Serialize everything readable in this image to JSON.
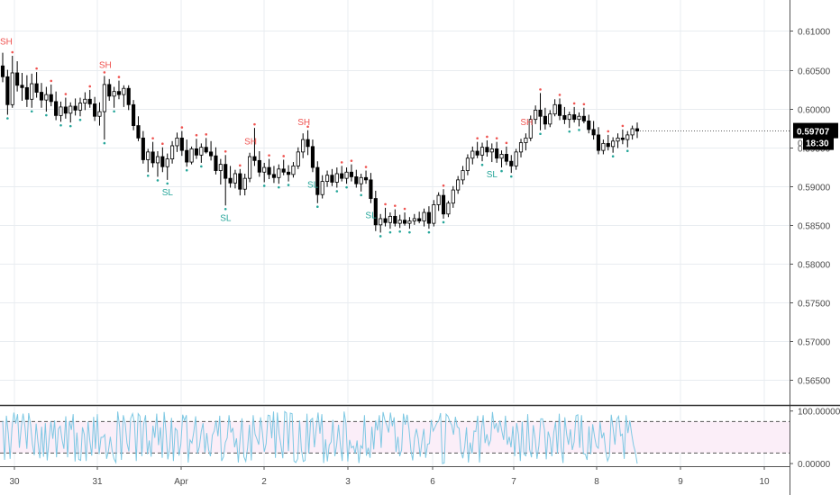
{
  "chart_data": {
    "type": "candlestick",
    "main_panel": {
      "ylim": [
        0.562,
        0.614
      ],
      "y_ticks": [
        "0.56500",
        "0.57000",
        "0.57500",
        "0.58000",
        "0.58500",
        "0.59000",
        "0.59500",
        "0.60000",
        "0.60500",
        "0.61000"
      ],
      "last_price": "0.59707",
      "countdown": "18:30",
      "hidden_tick": "0",
      "bullish_color": "#ffffff",
      "bearish_color": "#000000",
      "swing_high_color": "#ef5350",
      "swing_low_color": "#26a69a",
      "candles": [
        [
          0.6055,
          0.6072,
          0.6034,
          0.6041
        ],
        [
          0.6041,
          0.605,
          0.5992,
          0.6005
        ],
        [
          0.6005,
          0.6068,
          0.6001,
          0.6046
        ],
        [
          0.6046,
          0.6061,
          0.6022,
          0.603
        ],
        [
          0.603,
          0.6046,
          0.601,
          0.6027
        ],
        [
          0.6027,
          0.6043,
          0.6002,
          0.6012
        ],
        [
          0.6012,
          0.6045,
          0.6001,
          0.6032
        ],
        [
          0.6032,
          0.6047,
          0.6014,
          0.6021
        ],
        [
          0.6021,
          0.6033,
          0.6001,
          0.6011
        ],
        [
          0.6011,
          0.6028,
          0.5996,
          0.6018
        ],
        [
          0.6018,
          0.6031,
          0.6003,
          0.6009
        ],
        [
          0.6009,
          0.6022,
          0.5985,
          0.5991
        ],
        [
          0.5991,
          0.6009,
          0.5983,
          0.6002
        ],
        [
          0.6002,
          0.6014,
          0.5987,
          0.5994
        ],
        [
          0.5994,
          0.6008,
          0.5982,
          0.6003
        ],
        [
          0.6003,
          0.6013,
          0.5991,
          0.5998
        ],
        [
          0.5998,
          0.6014,
          0.599,
          0.6007
        ],
        [
          0.6007,
          0.6021,
          0.5998,
          0.6012
        ],
        [
          0.6012,
          0.6024,
          0.6001,
          0.6006
        ],
        [
          0.6006,
          0.6015,
          0.5984,
          0.599
        ],
        [
          0.599,
          0.6008,
          0.5978,
          0.5996
        ],
        [
          0.5996,
          0.6042,
          0.596,
          0.6031
        ],
        [
          0.6031,
          0.6038,
          0.601,
          0.6016
        ],
        [
          0.6016,
          0.6028,
          0.6001,
          0.6022
        ],
        [
          0.6022,
          0.6036,
          0.6012,
          0.6018
        ],
        [
          0.6018,
          0.603,
          0.6002,
          0.6026
        ],
        [
          0.6026,
          0.603,
          0.5998,
          0.6005
        ],
        [
          0.6005,
          0.6011,
          0.5972,
          0.5978
        ],
        [
          0.5978,
          0.599,
          0.5958,
          0.5962
        ],
        [
          0.5962,
          0.5971,
          0.5929,
          0.5934
        ],
        [
          0.5934,
          0.5948,
          0.5918,
          0.5944
        ],
        [
          0.5944,
          0.5957,
          0.5924,
          0.593
        ],
        [
          0.593,
          0.5945,
          0.5912,
          0.5938
        ],
        [
          0.5938,
          0.595,
          0.5918,
          0.5925
        ],
        [
          0.5925,
          0.5942,
          0.5908,
          0.5935
        ],
        [
          0.5935,
          0.5958,
          0.5929,
          0.5952
        ],
        [
          0.5952,
          0.5969,
          0.5944,
          0.5962
        ],
        [
          0.5962,
          0.5971,
          0.5939,
          0.5946
        ],
        [
          0.5946,
          0.596,
          0.5925,
          0.5931
        ],
        [
          0.5931,
          0.5951,
          0.5928,
          0.5948
        ],
        [
          0.5948,
          0.5961,
          0.5935,
          0.594
        ],
        [
          0.594,
          0.5955,
          0.593,
          0.595
        ],
        [
          0.595,
          0.5962,
          0.5942,
          0.5944
        ],
        [
          0.5944,
          0.5958,
          0.5933,
          0.5939
        ],
        [
          0.5939,
          0.595,
          0.5915,
          0.592
        ],
        [
          0.592,
          0.5935,
          0.5902,
          0.5928
        ],
        [
          0.5928,
          0.594,
          0.5875,
          0.591
        ],
        [
          0.591,
          0.5926,
          0.5898,
          0.5904
        ],
        [
          0.5904,
          0.5921,
          0.5897,
          0.5916
        ],
        [
          0.5916,
          0.5922,
          0.5888,
          0.5896
        ],
        [
          0.5896,
          0.5916,
          0.5888,
          0.591
        ],
        [
          0.591,
          0.5943,
          0.5905,
          0.5938
        ],
        [
          0.5938,
          0.5975,
          0.5926,
          0.5933
        ],
        [
          0.5933,
          0.5945,
          0.5912,
          0.5918
        ],
        [
          0.5918,
          0.593,
          0.5905,
          0.5924
        ],
        [
          0.5924,
          0.5935,
          0.5909,
          0.5915
        ],
        [
          0.5915,
          0.5926,
          0.5904,
          0.5911
        ],
        [
          0.5911,
          0.5928,
          0.5903,
          0.5922
        ],
        [
          0.5922,
          0.5934,
          0.5914,
          0.5918
        ],
        [
          0.5918,
          0.5927,
          0.5906,
          0.5915
        ],
        [
          0.5915,
          0.5931,
          0.5911,
          0.5926
        ],
        [
          0.5926,
          0.595,
          0.5922,
          0.5944
        ],
        [
          0.5944,
          0.5968,
          0.5936,
          0.596
        ],
        [
          0.596,
          0.5972,
          0.594,
          0.5951
        ],
        [
          0.5951,
          0.596,
          0.5918,
          0.5924
        ],
        [
          0.5924,
          0.5932,
          0.5878,
          0.5889
        ],
        [
          0.5889,
          0.5914,
          0.5884,
          0.5906
        ],
        [
          0.5906,
          0.592,
          0.5899,
          0.5914
        ],
        [
          0.5914,
          0.5922,
          0.59,
          0.5905
        ],
        [
          0.5905,
          0.5924,
          0.5898,
          0.5916
        ],
        [
          0.5916,
          0.5926,
          0.5906,
          0.591
        ],
        [
          0.591,
          0.5924,
          0.5903,
          0.5918
        ],
        [
          0.5918,
          0.5928,
          0.5906,
          0.5912
        ],
        [
          0.5912,
          0.5921,
          0.5898,
          0.5903
        ],
        [
          0.5903,
          0.5916,
          0.5893,
          0.5911
        ],
        [
          0.5911,
          0.592,
          0.5903,
          0.5908
        ],
        [
          0.5908,
          0.5917,
          0.5878,
          0.5884
        ],
        [
          0.5884,
          0.5894,
          0.5842,
          0.585
        ],
        [
          0.585,
          0.5864,
          0.584,
          0.5858
        ],
        [
          0.5858,
          0.5872,
          0.5848,
          0.5853
        ],
        [
          0.5853,
          0.5866,
          0.5845,
          0.5861
        ],
        [
          0.5861,
          0.587,
          0.5848,
          0.5852
        ],
        [
          0.5852,
          0.5863,
          0.5846,
          0.5856
        ],
        [
          0.5856,
          0.5866,
          0.5849,
          0.5852
        ],
        [
          0.5852,
          0.586,
          0.5845,
          0.5855
        ],
        [
          0.5855,
          0.5864,
          0.585,
          0.5858
        ],
        [
          0.5858,
          0.5867,
          0.5852,
          0.5855
        ],
        [
          0.5855,
          0.5871,
          0.5848,
          0.5866
        ],
        [
          0.5866,
          0.5874,
          0.5845,
          0.5852
        ],
        [
          0.5852,
          0.5882,
          0.5848,
          0.5876
        ],
        [
          0.5876,
          0.5892,
          0.5868,
          0.5888
        ],
        [
          0.5888,
          0.5896,
          0.5858,
          0.5864
        ],
        [
          0.5864,
          0.5881,
          0.586,
          0.5878
        ],
        [
          0.5878,
          0.59,
          0.5872,
          0.5895
        ],
        [
          0.5895,
          0.5913,
          0.589,
          0.5908
        ],
        [
          0.5908,
          0.5926,
          0.5902,
          0.592
        ],
        [
          0.592,
          0.5941,
          0.5914,
          0.5936
        ],
        [
          0.5936,
          0.5951,
          0.5928,
          0.5945
        ],
        [
          0.5945,
          0.5957,
          0.5936,
          0.594
        ],
        [
          0.594,
          0.5956,
          0.5932,
          0.595
        ],
        [
          0.595,
          0.5959,
          0.5938,
          0.5944
        ],
        [
          0.5944,
          0.5955,
          0.5931,
          0.5948
        ],
        [
          0.5948,
          0.5957,
          0.593,
          0.5936
        ],
        [
          0.5936,
          0.5946,
          0.5924,
          0.5941
        ],
        [
          0.5941,
          0.5951,
          0.5927,
          0.5932
        ],
        [
          0.5932,
          0.594,
          0.5917,
          0.5926
        ],
        [
          0.5926,
          0.5948,
          0.5921,
          0.5944
        ],
        [
          0.5944,
          0.5961,
          0.5937,
          0.5956
        ],
        [
          0.5956,
          0.5968,
          0.5946,
          0.5962
        ],
        [
          0.5962,
          0.5991,
          0.5958,
          0.5986
        ],
        [
          0.5986,
          0.6004,
          0.598,
          0.5998
        ],
        [
          0.5998,
          0.602,
          0.5972,
          0.599
        ],
        [
          0.599,
          0.6001,
          0.5973,
          0.598
        ],
        [
          0.598,
          0.5998,
          0.5976,
          0.5993
        ],
        [
          0.5993,
          0.6012,
          0.599,
          0.6005
        ],
        [
          0.6005,
          0.6013,
          0.5985,
          0.5991
        ],
        [
          0.5991,
          0.6002,
          0.598,
          0.5986
        ],
        [
          0.5986,
          0.5996,
          0.5975,
          0.5992
        ],
        [
          0.5992,
          0.6002,
          0.5982,
          0.5986
        ],
        [
          0.5986,
          0.5995,
          0.5977,
          0.599
        ],
        [
          0.599,
          0.6001,
          0.5981,
          0.5984
        ],
        [
          0.5984,
          0.5992,
          0.5968,
          0.5973
        ],
        [
          0.5973,
          0.5984,
          0.596,
          0.5966
        ],
        [
          0.5966,
          0.5976,
          0.5941,
          0.5946
        ],
        [
          0.5946,
          0.596,
          0.5941,
          0.5955
        ],
        [
          0.5955,
          0.5966,
          0.5946,
          0.5951
        ],
        [
          0.5951,
          0.5963,
          0.5943,
          0.5958
        ],
        [
          0.5958,
          0.5968,
          0.5949,
          0.5962
        ],
        [
          0.5962,
          0.5973,
          0.5954,
          0.596
        ],
        [
          0.596,
          0.5971,
          0.595,
          0.5966
        ],
        [
          0.5966,
          0.5978,
          0.596,
          0.5974
        ],
        [
          0.5974,
          0.5982,
          0.5962,
          0.5971
        ]
      ],
      "swing_highs": [
        {
          "label": "SH",
          "index": 0
        },
        {
          "label": "SH",
          "index": 21
        },
        {
          "label": "SH",
          "index": 51
        },
        {
          "label": "SH",
          "index": 62
        },
        {
          "label": "SH",
          "index": 108
        }
      ],
      "swing_lows": [
        {
          "label": "SL",
          "index": 34
        },
        {
          "label": "SL",
          "index": 46
        },
        {
          "label": "SL",
          "index": 64
        },
        {
          "label": "SL",
          "index": 76
        },
        {
          "label": "SL",
          "index": 101
        }
      ]
    },
    "oscillator_panel": {
      "ylim": [
        -5,
        108
      ],
      "y_ticks": [
        "0.00000",
        "100.00000"
      ],
      "upper_band": 80,
      "lower_band": 20,
      "line_color": "#7ec8e3",
      "band_fill": "#fbeef8",
      "values": [
        81,
        7,
        91,
        57,
        9,
        68,
        97,
        76,
        94,
        30,
        69,
        95,
        70,
        28,
        96,
        75,
        38,
        16,
        76,
        41,
        10,
        70,
        13,
        77,
        6,
        46,
        80,
        47,
        82,
        12,
        66,
        71,
        45,
        28,
        90,
        12,
        81,
        64,
        94,
        4,
        59,
        8,
        6,
        69,
        55,
        5,
        80,
        43,
        15,
        89,
        28,
        94,
        18,
        50,
        50,
        55,
        9,
        24,
        51,
        24,
        9,
        2,
        99,
        70,
        7,
        92,
        76,
        39,
        23,
        86,
        95,
        77,
        5,
        95,
        90,
        14,
        75,
        92,
        18,
        44,
        13,
        72,
        49,
        95,
        35,
        69,
        11,
        98,
        63,
        8,
        30,
        87,
        5,
        67,
        63,
        15,
        36,
        93,
        82,
        92,
        2,
        45,
        39,
        60,
        90,
        19,
        32,
        61,
        77,
        21,
        58,
        26,
        14,
        54,
        62,
        82,
        52,
        91,
        5,
        13,
        40,
        49,
        92,
        59,
        68,
        31,
        48,
        2,
        48,
        86,
        13,
        4,
        30,
        74,
        6,
        92,
        56,
        47,
        36,
        88,
        58,
        22,
        38,
        92,
        91,
        48,
        99,
        11,
        97,
        57,
        34,
        10,
        99,
        96,
        24,
        96,
        95,
        5,
        2,
        9,
        82,
        27,
        4,
        6,
        95,
        19,
        83,
        86,
        31,
        67,
        97,
        57,
        94,
        1,
        46,
        4,
        35,
        41,
        83,
        14,
        35,
        74,
        37,
        5,
        99,
        77,
        4,
        45,
        30,
        33,
        19,
        44,
        1,
        34,
        29,
        92,
        15,
        30,
        11,
        70,
        27,
        82,
        63,
        92,
        30,
        98,
        83,
        73,
        59,
        97,
        71,
        88,
        22,
        51,
        14,
        26,
        95,
        74,
        93,
        66,
        26,
        6,
        49,
        66,
        47,
        13,
        43,
        66,
        11,
        37,
        38,
        83,
        62,
        69,
        77,
        81,
        96,
        0,
        1,
        94,
        90,
        80,
        73,
        55,
        89,
        70,
        67,
        25,
        10,
        32,
        69,
        2,
        40,
        19,
        62,
        61,
        91,
        2,
        63,
        92,
        39,
        56,
        35,
        45,
        98,
        66,
        77,
        59,
        82,
        63,
        45,
        91,
        36,
        51,
        31,
        71,
        14,
        77,
        55,
        5,
        80,
        18,
        15,
        94,
        27,
        12,
        73,
        47,
        9,
        34,
        85,
        85,
        64,
        8,
        61,
        48,
        14,
        59,
        79,
        19,
        95,
        31,
        1,
        88,
        55,
        36,
        65,
        26,
        41,
        91,
        93,
        30,
        92,
        19,
        18,
        7,
        71,
        18,
        75,
        51,
        33,
        29,
        79,
        48,
        59,
        24,
        5,
        14,
        93,
        68,
        36,
        84,
        90,
        53,
        56,
        9,
        92,
        58,
        82,
        57,
        35,
        22,
        0
      ]
    },
    "x_ticks": [
      "30",
      "31",
      "Apr",
      "2",
      "3",
      "6",
      "7",
      "8",
      "9",
      "10"
    ]
  },
  "colors": {
    "grid": "#e8ecf0",
    "axis_line": "#555555",
    "divider": "#333333",
    "tick_text": "#4a4a4a",
    "price_label_bg": "#000000",
    "price_label_text": "#ffffff"
  }
}
